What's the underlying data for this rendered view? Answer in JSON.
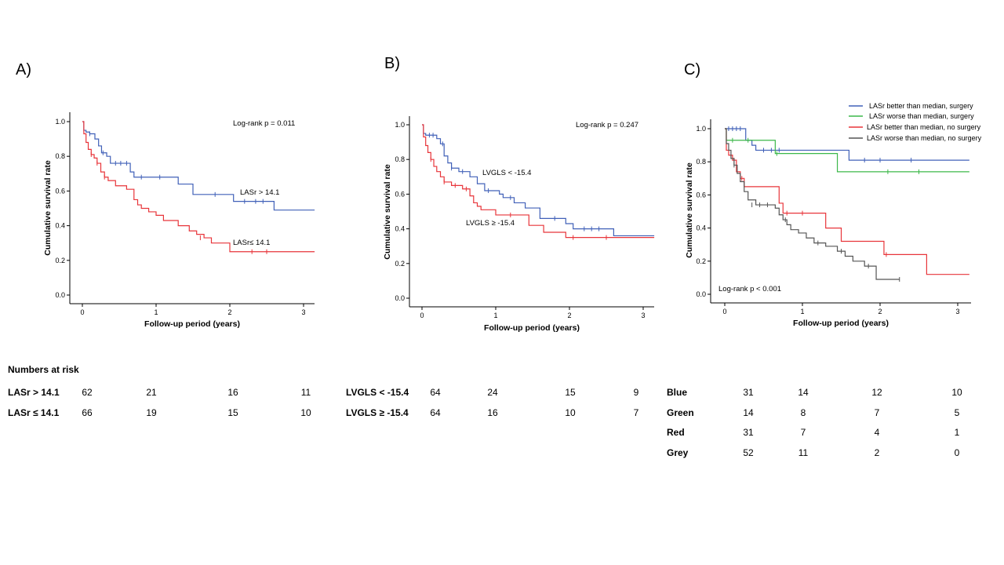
{
  "panel_labels": {
    "a": "A)",
    "b": "B)",
    "c": "C)"
  },
  "colors": {
    "blue": "#4060b8",
    "red": "#e8353a",
    "green": "#3cb84a",
    "grey": "#555555",
    "axis": "#000000"
  },
  "chart_data": [
    {
      "type": "line",
      "subtype": "kaplan-meier",
      "title": "A)",
      "xlabel": "Follow-up period (years)",
      "ylabel": "Cumulative survival rate",
      "xlim": [
        0,
        3.15
      ],
      "ylim": [
        0,
        1.0
      ],
      "xticks": [
        "0",
        "1",
        "2",
        "3"
      ],
      "yticks": [
        "0.0",
        "0.2",
        "0.4",
        "0.6",
        "0.8",
        "1.0"
      ],
      "annotations": {
        "pvalue": "Log-rank p = 0.011",
        "label_blue": "LASr > 14.1",
        "label_red": "LASr≤ 14.1"
      },
      "series": [
        {
          "name": "LASr > 14.1",
          "color": "#4060b8",
          "x": [
            0,
            0.02,
            0.05,
            0.1,
            0.17,
            0.22,
            0.26,
            0.33,
            0.38,
            0.65,
            0.7,
            1.3,
            1.5,
            2.05,
            2.6,
            3.15
          ],
          "y": [
            1.0,
            0.95,
            0.94,
            0.93,
            0.9,
            0.86,
            0.82,
            0.8,
            0.76,
            0.71,
            0.68,
            0.64,
            0.58,
            0.54,
            0.49,
            0.49
          ],
          "censor_x": [
            0.1,
            0.28,
            0.45,
            0.52,
            0.6,
            0.8,
            1.05,
            1.8,
            2.2,
            2.35,
            2.45
          ],
          "censor_y": [
            0.93,
            0.82,
            0.76,
            0.76,
            0.76,
            0.68,
            0.68,
            0.58,
            0.54,
            0.54,
            0.54
          ]
        },
        {
          "name": "LASr ≤ 14.1",
          "color": "#e8353a",
          "x": [
            0,
            0.02,
            0.05,
            0.08,
            0.12,
            0.16,
            0.2,
            0.25,
            0.3,
            0.35,
            0.45,
            0.6,
            0.7,
            0.75,
            0.8,
            0.9,
            1.0,
            1.1,
            1.3,
            1.45,
            1.55,
            1.65,
            1.75,
            2.0,
            3.15
          ],
          "y": [
            1.0,
            0.93,
            0.88,
            0.84,
            0.81,
            0.79,
            0.76,
            0.71,
            0.68,
            0.66,
            0.63,
            0.61,
            0.55,
            0.52,
            0.5,
            0.48,
            0.46,
            0.43,
            0.4,
            0.37,
            0.35,
            0.33,
            0.3,
            0.25,
            0.25
          ],
          "censor_x": [
            0.12,
            0.2,
            0.3,
            1.6,
            2.3,
            2.5
          ],
          "censor_y": [
            0.81,
            0.76,
            0.68,
            0.33,
            0.25,
            0.25
          ]
        }
      ],
      "numbers_at_risk": {
        "heading": "Numbers at risk",
        "rows": [
          {
            "label": "LASr > 14.1",
            "values": [
              "62",
              "21",
              "16",
              "11"
            ]
          },
          {
            "label": "LASr  ≤ 14.1",
            "values": [
              "66",
              "19",
              "15",
              "10"
            ]
          }
        ]
      }
    },
    {
      "type": "line",
      "subtype": "kaplan-meier",
      "title": "B)",
      "xlabel": "Follow-up period (years)",
      "ylabel": "Cumulative survival rate",
      "xlim": [
        0,
        3.15
      ],
      "ylim": [
        0,
        1.0
      ],
      "xticks": [
        "0",
        "1",
        "2",
        "3"
      ],
      "yticks": [
        "0.0",
        "0.2",
        "0.4",
        "0.6",
        "0.8",
        "1.0"
      ],
      "annotations": {
        "pvalue": "Log-rank p = 0.247",
        "label_blue": "LVGLS < -15.4",
        "label_red": "LVGLS ≥ -15.4"
      },
      "series": [
        {
          "name": "LVGLS < -15.4",
          "color": "#4060b8",
          "x": [
            0,
            0.02,
            0.05,
            0.2,
            0.25,
            0.3,
            0.35,
            0.4,
            0.5,
            0.65,
            0.75,
            0.85,
            1.05,
            1.1,
            1.25,
            1.4,
            1.6,
            1.95,
            2.05,
            2.6,
            3.15
          ],
          "y": [
            1.0,
            0.95,
            0.94,
            0.92,
            0.89,
            0.82,
            0.78,
            0.75,
            0.73,
            0.7,
            0.66,
            0.62,
            0.6,
            0.58,
            0.55,
            0.52,
            0.46,
            0.43,
            0.4,
            0.36,
            0.36
          ],
          "censor_x": [
            0.1,
            0.15,
            0.28,
            0.4,
            0.55,
            0.9,
            1.2,
            1.8,
            2.2,
            2.3,
            2.4
          ],
          "censor_y": [
            0.94,
            0.94,
            0.89,
            0.75,
            0.73,
            0.62,
            0.58,
            0.46,
            0.4,
            0.4,
            0.4
          ]
        },
        {
          "name": "LVGLS ≥ -15.4",
          "color": "#e8353a",
          "x": [
            0,
            0.02,
            0.05,
            0.08,
            0.12,
            0.16,
            0.2,
            0.25,
            0.3,
            0.4,
            0.55,
            0.65,
            0.7,
            0.75,
            0.8,
            1.0,
            1.45,
            1.65,
            1.95,
            3.15
          ],
          "y": [
            1.0,
            0.93,
            0.88,
            0.84,
            0.8,
            0.76,
            0.73,
            0.7,
            0.67,
            0.65,
            0.63,
            0.59,
            0.55,
            0.53,
            0.51,
            0.48,
            0.42,
            0.38,
            0.35,
            0.35
          ],
          "censor_x": [
            0.12,
            0.3,
            0.45,
            0.6,
            1.2,
            2.05,
            2.5
          ],
          "censor_y": [
            0.8,
            0.67,
            0.65,
            0.63,
            0.48,
            0.35,
            0.35
          ]
        }
      ],
      "numbers_at_risk": {
        "rows": [
          {
            "label": "LVGLS < -15.4",
            "values": [
              "64",
              "24",
              "15",
              "9"
            ]
          },
          {
            "label": "LVGLS  ≥ -15.4",
            "values": [
              "64",
              "16",
              "10",
              "7"
            ]
          }
        ]
      }
    },
    {
      "type": "line",
      "subtype": "kaplan-meier",
      "title": "C)",
      "xlabel": "Follow-up period (years)",
      "ylabel": "Cumulative survival rate",
      "xlim": [
        0,
        3.15
      ],
      "ylim": [
        0,
        1.0
      ],
      "xticks": [
        "0",
        "1",
        "2",
        "3"
      ],
      "yticks": [
        "0.0",
        "0.2",
        "0.4",
        "0.6",
        "0.8",
        "1.0"
      ],
      "annotations": {
        "pvalue": "Log-rank p < 0.001"
      },
      "legend": [
        {
          "label": "LASr better than median, surgery",
          "color": "#4060b8"
        },
        {
          "label": "LASr worse than median, surgery",
          "color": "#3cb84a"
        },
        {
          "label": "LASr better than median, no surgery",
          "color": "#e8353a"
        },
        {
          "label": "LASr worse than median, no surgery",
          "color": "#555555"
        }
      ],
      "series": [
        {
          "name": "LASr better than median, surgery",
          "color": "#4060b8",
          "x": [
            0,
            0.27,
            0.35,
            0.4,
            1.6,
            3.15
          ],
          "y": [
            1.0,
            0.93,
            0.9,
            0.87,
            0.81,
            0.81
          ],
          "censor_x": [
            0.05,
            0.1,
            0.15,
            0.2,
            0.5,
            0.6,
            0.7,
            1.8,
            2.0,
            2.4
          ],
          "censor_y": [
            1.0,
            1.0,
            1.0,
            1.0,
            0.87,
            0.87,
            0.87,
            0.81,
            0.81,
            0.81
          ]
        },
        {
          "name": "LASr worse than median, surgery",
          "color": "#3cb84a",
          "x": [
            0,
            0.02,
            0.65,
            1.45,
            3.15
          ],
          "y": [
            1.0,
            0.93,
            0.85,
            0.74,
            0.74
          ],
          "censor_x": [
            0.1,
            0.3,
            0.67,
            2.1,
            2.5
          ],
          "censor_y": [
            0.93,
            0.93,
            0.85,
            0.74,
            0.74
          ]
        },
        {
          "name": "LASr better than median, no surgery",
          "color": "#e8353a",
          "x": [
            0,
            0.02,
            0.05,
            0.1,
            0.15,
            0.2,
            0.25,
            0.7,
            0.75,
            1.3,
            1.5,
            2.05,
            2.6,
            3.15
          ],
          "y": [
            1.0,
            0.87,
            0.84,
            0.81,
            0.74,
            0.7,
            0.65,
            0.55,
            0.49,
            0.4,
            0.32,
            0.24,
            0.12,
            0.12
          ],
          "censor_x": [
            0.12,
            0.22,
            0.8,
            1.0,
            2.08
          ],
          "censor_y": [
            0.81,
            0.7,
            0.49,
            0.49,
            0.24
          ]
        },
        {
          "name": "LASr worse than median, no surgery",
          "color": "#555555",
          "x": [
            0,
            0.02,
            0.05,
            0.08,
            0.12,
            0.16,
            0.2,
            0.25,
            0.3,
            0.4,
            0.65,
            0.7,
            0.75,
            0.8,
            0.85,
            0.95,
            1.05,
            1.15,
            1.3,
            1.45,
            1.55,
            1.65,
            1.8,
            1.95,
            2.25
          ],
          "y": [
            1.0,
            0.91,
            0.87,
            0.82,
            0.78,
            0.73,
            0.68,
            0.62,
            0.57,
            0.54,
            0.52,
            0.48,
            0.45,
            0.42,
            0.39,
            0.37,
            0.34,
            0.31,
            0.29,
            0.26,
            0.23,
            0.2,
            0.17,
            0.09,
            0.09
          ],
          "censor_x": [
            0.12,
            0.35,
            0.45,
            0.55,
            0.78,
            1.2,
            1.5,
            1.85,
            2.25
          ],
          "censor_y": [
            0.78,
            0.54,
            0.54,
            0.54,
            0.45,
            0.31,
            0.26,
            0.17,
            0.09
          ]
        }
      ],
      "numbers_at_risk": {
        "rows": [
          {
            "label": "Blue",
            "values": [
              "31",
              "14",
              "12",
              "10"
            ]
          },
          {
            "label": "Green",
            "values": [
              "14",
              "8",
              "7",
              "5"
            ]
          },
          {
            "label": "Red",
            "values": [
              "31",
              "7",
              "4",
              "1"
            ]
          },
          {
            "label": "Grey",
            "values": [
              "52",
              "11",
              "2",
              "0"
            ]
          }
        ]
      }
    }
  ]
}
